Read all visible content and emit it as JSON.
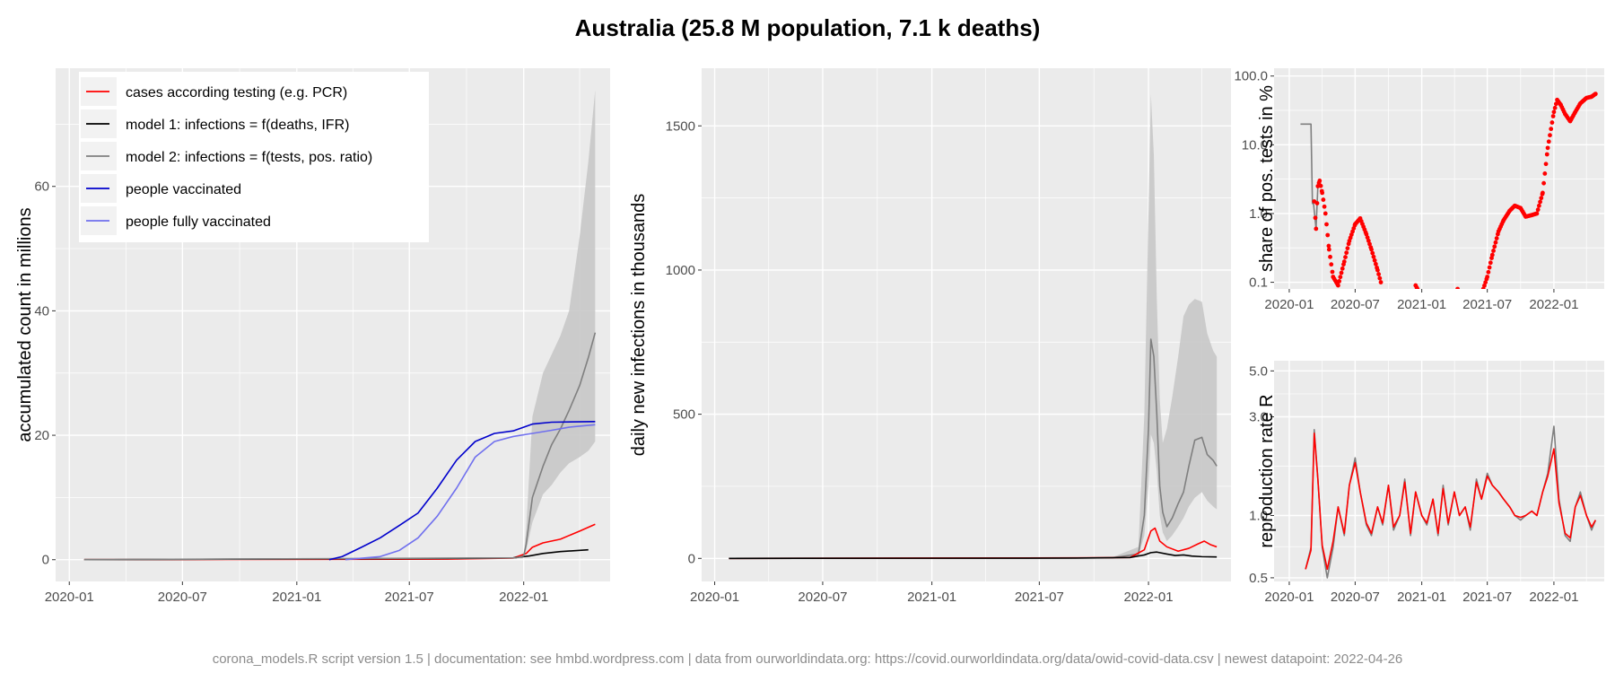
{
  "title": "Australia (25.8 M population, 7.1 k deaths)",
  "footer": "corona_models.R script version 1.5 | documentation: see hmbd.wordpress.com | data from ourworldindata.org: https://covid.ourworldindata.org/data/owid-covid-data.csv | newest datapoint: 2022-04-26",
  "colors": {
    "panel_bg": "#ebebeb",
    "grid": "#ffffff",
    "cases": "#ff0000",
    "model1": "#000000",
    "model2": "#7f7f7f",
    "vaccinated": "#0000cc",
    "fully_vaccinated": "#7070ee",
    "ribbon": "#c8c8c8"
  },
  "chart_data": [
    {
      "type": "line",
      "ylabel": "accumulated count in millions",
      "xlabel": "",
      "x_ticks": [
        "2020-01",
        "2020-07",
        "2021-01",
        "2021-07",
        "2022-01"
      ],
      "y_ticks": [
        "0",
        "20",
        "40",
        "60"
      ],
      "ylim": [
        -3.5,
        79
      ],
      "legend_position": "top-left",
      "legend": [
        {
          "label": "cases according testing (e.g. PCR)",
          "color": "#ff0000"
        },
        {
          "label": "model 1: infections = f(deaths, IFR)",
          "color": "#000000"
        },
        {
          "label": "model 2: infections = f(tests, pos. ratio)",
          "color": "#7f7f7f"
        },
        {
          "label": "people vaccinated",
          "color": "#0000cc"
        },
        {
          "label": "people fully vaccinated",
          "color": "#7070ee"
        }
      ],
      "series": [
        {
          "name": "cases according testing (e.g. PCR)",
          "color": "#ff0000",
          "x": [
            "2020-01-25",
            "2021-09-01",
            "2021-12-15",
            "2022-01-05",
            "2022-01-15",
            "2022-02-01",
            "2022-03-01",
            "2022-04-01",
            "2022-04-26"
          ],
          "values": [
            0,
            0.09,
            0.25,
            1.0,
            2.0,
            2.7,
            3.3,
            4.6,
            5.7
          ]
        },
        {
          "name": "model 1: infections = f(deaths, IFR)",
          "color": "#000000",
          "x": [
            "2020-01-25",
            "2021-09-01",
            "2021-12-15",
            "2022-01-10",
            "2022-02-01",
            "2022-03-01",
            "2022-04-15"
          ],
          "values": [
            0,
            0.2,
            0.3,
            0.6,
            1.0,
            1.3,
            1.6
          ]
        },
        {
          "name": "model 2: infections = f(tests, pos. ratio)",
          "color": "#7f7f7f",
          "x": [
            "2020-01-25",
            "2021-12-20",
            "2022-01-01",
            "2022-01-05",
            "2022-01-15",
            "2022-02-01",
            "2022-02-15",
            "2022-03-01",
            "2022-03-15",
            "2022-04-01",
            "2022-04-15",
            "2022-04-26"
          ],
          "values": [
            0,
            0.3,
            0.6,
            2.5,
            10.0,
            15.0,
            18.5,
            21.0,
            24.0,
            28.0,
            32.5,
            36.5
          ],
          "ribbon_low": [
            0,
            0.3,
            0.5,
            1.5,
            6.0,
            10.5,
            12.0,
            14.0,
            15.5,
            16.5,
            17.5,
            19.0
          ],
          "ribbon_high": [
            0,
            0.4,
            0.8,
            5.0,
            23.0,
            30.0,
            33.0,
            36.0,
            40.0,
            52.0,
            64.0,
            75.5
          ]
        },
        {
          "name": "people vaccinated",
          "color": "#0000cc",
          "x": [
            "2021-02-22",
            "2021-03-15",
            "2021-04-15",
            "2021-05-15",
            "2021-06-15",
            "2021-07-15",
            "2021-08-15",
            "2021-09-15",
            "2021-10-15",
            "2021-11-15",
            "2021-12-15",
            "2022-01-15",
            "2022-02-15",
            "2022-04-26"
          ],
          "values": [
            0,
            0.5,
            2.0,
            3.5,
            5.5,
            7.5,
            11.5,
            16.0,
            19.0,
            20.3,
            20.7,
            21.8,
            22.1,
            22.2
          ]
        },
        {
          "name": "people fully vaccinated",
          "color": "#7070ee",
          "x": [
            "2021-03-20",
            "2021-05-15",
            "2021-06-15",
            "2021-07-15",
            "2021-08-15",
            "2021-09-15",
            "2021-10-15",
            "2021-11-15",
            "2021-12-15",
            "2022-01-15",
            "2022-02-15",
            "2022-03-15",
            "2022-04-26"
          ],
          "values": [
            0,
            0.5,
            1.5,
            3.5,
            7.0,
            11.5,
            16.5,
            19.0,
            19.8,
            20.3,
            20.8,
            21.3,
            21.7
          ]
        }
      ]
    },
    {
      "type": "line",
      "ylabel": "daily new infections in thousands",
      "xlabel": "",
      "x_ticks": [
        "2020-01",
        "2020-07",
        "2021-01",
        "2021-07",
        "2022-01"
      ],
      "y_ticks": [
        "0",
        "500",
        "1000",
        "1500"
      ],
      "ylim": [
        -80,
        1700
      ],
      "series": [
        {
          "name": "model 2: infections = f(tests, pos. ratio)",
          "color": "#7f7f7f",
          "x": [
            "2020-01-25",
            "2021-11-01",
            "2021-12-15",
            "2021-12-25",
            "2022-01-01",
            "2022-01-05",
            "2022-01-10",
            "2022-01-15",
            "2022-01-20",
            "2022-01-25",
            "2022-02-01",
            "2022-02-10",
            "2022-02-20",
            "2022-03-01",
            "2022-03-10",
            "2022-03-20",
            "2022-04-01",
            "2022-04-10",
            "2022-04-20",
            "2022-04-26"
          ],
          "values": [
            0,
            2,
            15,
            150,
            450,
            760,
            700,
            500,
            250,
            160,
            110,
            140,
            190,
            230,
            320,
            410,
            420,
            360,
            340,
            320
          ],
          "ribbon_low": [
            0,
            1,
            8,
            80,
            250,
            430,
            400,
            300,
            150,
            90,
            60,
            80,
            110,
            140,
            180,
            210,
            230,
            200,
            180,
            170
          ],
          "ribbon_high": [
            0,
            4,
            40,
            500,
            1200,
            1610,
            1400,
            900,
            550,
            400,
            450,
            560,
            700,
            840,
            880,
            900,
            890,
            780,
            720,
            700
          ]
        },
        {
          "name": "cases according testing (e.g. PCR)",
          "color": "#ff0000",
          "x": [
            "2020-01-25",
            "2021-09-01",
            "2021-12-01",
            "2021-12-25",
            "2022-01-05",
            "2022-01-12",
            "2022-01-20",
            "2022-02-01",
            "2022-02-20",
            "2022-03-10",
            "2022-03-25",
            "2022-04-05",
            "2022-04-15",
            "2022-04-26"
          ],
          "values": [
            0,
            2,
            3,
            30,
            95,
            105,
            60,
            40,
            25,
            35,
            50,
            60,
            48,
            40
          ]
        },
        {
          "name": "model 1: infections = f(deaths, IFR)",
          "color": "#000000",
          "x": [
            "2020-01-25",
            "2021-09-01",
            "2021-12-01",
            "2021-12-25",
            "2022-01-05",
            "2022-01-15",
            "2022-02-01",
            "2022-02-15",
            "2022-03-01",
            "2022-03-15",
            "2022-04-01",
            "2022-04-26"
          ],
          "values": [
            0,
            1,
            3,
            12,
            20,
            22,
            15,
            10,
            12,
            8,
            6,
            5
          ]
        }
      ]
    },
    {
      "type": "scatter",
      "ylabel": "share of pos. tests in %",
      "xlabel": "",
      "y_scale": "log",
      "x_ticks": [
        "2020-01",
        "2020-07",
        "2021-01",
        "2021-07",
        "2022-01"
      ],
      "y_ticks": [
        "0.1",
        "1.0",
        "10.0",
        "100.0"
      ],
      "ylim": [
        0.08,
        130
      ],
      "series": [
        {
          "name": "",
          "color": "#7f7f7f",
          "type": "line",
          "x": [
            "2020-02-01",
            "2020-03-01",
            "2020-03-05",
            "2020-03-08",
            "2020-03-15",
            "2020-03-20"
          ],
          "values": [
            20,
            20,
            1.4,
            1.4,
            0.6,
            2.5
          ]
        },
        {
          "name": "",
          "color": "#ff0000",
          "type": "points",
          "x": [
            "2020-03-10",
            "2020-03-15",
            "2020-03-20",
            "2020-03-25",
            "2020-04-01",
            "2020-04-10",
            "2020-04-20",
            "2020-05-01",
            "2020-05-15",
            "2020-06-01",
            "2020-06-15",
            "2020-07-01",
            "2020-07-15",
            "2020-08-01",
            "2020-08-15",
            "2020-09-01",
            "2020-09-10",
            "2020-12-15",
            "2020-12-20",
            "2021-04-10",
            "2021-06-20",
            "2021-07-01",
            "2021-07-15",
            "2021-08-01",
            "2021-08-15",
            "2021-09-01",
            "2021-09-15",
            "2021-10-01",
            "2021-10-15",
            "2021-11-01",
            "2021-11-15",
            "2021-12-01",
            "2021-12-15",
            "2022-01-01",
            "2022-01-10",
            "2022-01-20",
            "2022-02-01",
            "2022-02-15",
            "2022-03-01",
            "2022-03-15",
            "2022-04-01",
            "2022-04-15",
            "2022-04-26"
          ],
          "values": [
            1.5,
            0.6,
            2.5,
            3.0,
            2.0,
            1.0,
            0.3,
            0.12,
            0.09,
            0.2,
            0.4,
            0.7,
            0.85,
            0.5,
            0.3,
            0.15,
            0.1,
            0.09,
            0.08,
            0.08,
            0.08,
            0.12,
            0.25,
            0.55,
            0.8,
            1.1,
            1.3,
            1.2,
            0.9,
            0.95,
            1.0,
            2.0,
            9.0,
            30.0,
            45.0,
            38.0,
            28.0,
            22.0,
            30.0,
            40.0,
            48.0,
            50.0,
            55.0
          ]
        }
      ]
    },
    {
      "type": "line",
      "ylabel": "reproduction rate R",
      "xlabel": "",
      "y_scale": "log",
      "x_ticks": [
        "2020-01",
        "2020-07",
        "2021-01",
        "2021-07",
        "2022-01"
      ],
      "y_ticks": [
        "0.5",
        "1.0",
        "3.0",
        "5.0"
      ],
      "ylim": [
        0.48,
        5.6
      ],
      "series": [
        {
          "name": "",
          "color": "#7f7f7f",
          "x": [
            "2020-02-15",
            "2020-03-01",
            "2020-03-10",
            "2020-03-20",
            "2020-04-01",
            "2020-04-15",
            "2020-05-01",
            "2020-05-15",
            "2020-06-01",
            "2020-06-15",
            "2020-07-01",
            "2020-07-15",
            "2020-08-01",
            "2020-08-15",
            "2020-09-01",
            "2020-09-15",
            "2020-10-01",
            "2020-10-15",
            "2020-11-01",
            "2020-11-15",
            "2020-12-01",
            "2020-12-15",
            "2021-01-01",
            "2021-01-15",
            "2021-02-01",
            "2021-02-15",
            "2021-03-01",
            "2021-03-15",
            "2021-04-01",
            "2021-04-15",
            "2021-05-01",
            "2021-05-15",
            "2021-06-01",
            "2021-06-15",
            "2021-07-01",
            "2021-07-15",
            "2021-08-01",
            "2021-08-15",
            "2021-09-01",
            "2021-09-15",
            "2021-10-01",
            "2021-10-15",
            "2021-11-01",
            "2021-11-15",
            "2021-12-01",
            "2021-12-15",
            "2022-01-01",
            "2022-01-15",
            "2022-02-01",
            "2022-02-15",
            "2022-03-01",
            "2022-03-15",
            "2022-04-01",
            "2022-04-15",
            "2022-04-26"
          ],
          "values": [
            0.55,
            0.7,
            2.6,
            1.5,
            0.7,
            0.5,
            0.7,
            1.1,
            0.8,
            1.4,
            1.9,
            1.3,
            0.9,
            0.8,
            1.1,
            0.9,
            1.4,
            0.85,
            1.0,
            1.5,
            0.8,
            1.3,
            1.0,
            0.9,
            1.2,
            0.8,
            1.4,
            0.9,
            1.3,
            1.0,
            1.1,
            0.85,
            1.5,
            1.2,
            1.6,
            1.4,
            1.3,
            1.2,
            1.1,
            1.0,
            0.95,
            1.0,
            1.05,
            1.0,
            1.3,
            1.6,
            2.7,
            1.2,
            0.8,
            0.75,
            1.1,
            1.3,
            1.0,
            0.85,
            0.95
          ]
        },
        {
          "name": "",
          "color": "#ff0000",
          "x": [
            "2020-02-15",
            "2020-03-01",
            "2020-03-10",
            "2020-03-20",
            "2020-04-01",
            "2020-04-15",
            "2020-05-01",
            "2020-05-15",
            "2020-06-01",
            "2020-06-15",
            "2020-07-01",
            "2020-07-15",
            "2020-08-01",
            "2020-08-15",
            "2020-09-01",
            "2020-09-15",
            "2020-10-01",
            "2020-10-15",
            "2020-11-01",
            "2020-11-15",
            "2020-12-01",
            "2020-12-15",
            "2021-01-01",
            "2021-01-15",
            "2021-02-01",
            "2021-02-15",
            "2021-03-01",
            "2021-03-15",
            "2021-04-01",
            "2021-04-15",
            "2021-05-01",
            "2021-05-15",
            "2021-06-01",
            "2021-06-15",
            "2021-07-01",
            "2021-07-15",
            "2021-08-01",
            "2021-08-15",
            "2021-09-01",
            "2021-09-15",
            "2021-10-01",
            "2021-10-15",
            "2021-11-01",
            "2021-11-15",
            "2021-12-01",
            "2021-12-15",
            "2022-01-01",
            "2022-01-15",
            "2022-02-01",
            "2022-02-15",
            "2022-03-01",
            "2022-03-15",
            "2022-04-01",
            "2022-04-15",
            "2022-04-26"
          ],
          "values": [
            0.55,
            0.68,
            2.5,
            1.5,
            0.72,
            0.55,
            0.75,
            1.1,
            0.82,
            1.4,
            1.8,
            1.3,
            0.92,
            0.82,
            1.1,
            0.92,
            1.4,
            0.88,
            1.0,
            1.45,
            0.82,
            1.3,
            1.0,
            0.92,
            1.2,
            0.82,
            1.35,
            0.92,
            1.3,
            1.0,
            1.1,
            0.88,
            1.45,
            1.2,
            1.55,
            1.4,
            1.3,
            1.2,
            1.1,
            1.0,
            0.98,
            1.0,
            1.05,
            1.0,
            1.3,
            1.55,
            2.1,
            1.15,
            0.82,
            0.78,
            1.1,
            1.25,
            1.0,
            0.88,
            0.95
          ]
        }
      ]
    }
  ]
}
